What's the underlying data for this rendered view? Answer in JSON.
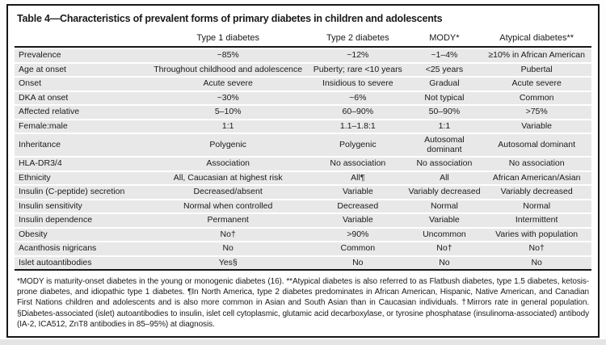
{
  "title": "Table 4—Characteristics of prevalent forms of primary diabetes in children and adolescents",
  "table": {
    "columns": [
      "",
      "Type 1 diabetes",
      "Type 2 diabetes",
      "MODY*",
      "Atypical diabetes**"
    ],
    "rows": [
      {
        "label": "Prevalence",
        "values": [
          "~85%",
          "~12%",
          "~1–4%",
          "≥10% in African American"
        ]
      },
      {
        "label": "Age at onset",
        "values": [
          "Throughout childhood and adolescence",
          "Puberty; rare <10 years",
          "<25 years",
          "Pubertal"
        ]
      },
      {
        "label": "Onset",
        "values": [
          "Acute severe",
          "Insidious to severe",
          "Gradual",
          "Acute severe"
        ]
      },
      {
        "label": "DKA at onset",
        "values": [
          "~30%",
          "~6%",
          "Not typical",
          "Common"
        ]
      },
      {
        "label": "Affected relative",
        "values": [
          "5–10%",
          "60–90%",
          "50–90%",
          ">75%"
        ]
      },
      {
        "label": "Female:male",
        "values": [
          "1:1",
          "1.1–1.8:1",
          "1:1",
          "Variable"
        ]
      },
      {
        "label": "Inheritance",
        "values": [
          "Polygenic",
          "Polygenic",
          "Autosomal\ndominant",
          "Autosomal dominant"
        ]
      },
      {
        "label": "HLA-DR3/4",
        "values": [
          "Association",
          "No association",
          "No association",
          "No association"
        ]
      },
      {
        "label": "Ethnicity",
        "values": [
          "All, Caucasian at highest risk",
          "All¶",
          "All",
          "African American/Asian"
        ]
      },
      {
        "label": "Insulin (C-peptide) secretion",
        "values": [
          "Decreased/absent",
          "Variable",
          "Variably decreased",
          "Variably decreased"
        ]
      },
      {
        "label": "Insulin sensitivity",
        "values": [
          "Normal when controlled",
          "Decreased",
          "Normal",
          "Normal"
        ]
      },
      {
        "label": "Insulin dependence",
        "values": [
          "Permanent",
          "Variable",
          "Variable",
          "Intermittent"
        ]
      },
      {
        "label": "Obesity",
        "values": [
          "No†",
          ">90%",
          "Uncommon",
          "Varies with population"
        ]
      },
      {
        "label": "Acanthosis nigricans",
        "values": [
          "No",
          "Common",
          "No†",
          "No†"
        ]
      },
      {
        "label": "Islet autoantibodies",
        "values": [
          "Yes§",
          "No",
          "No",
          "No"
        ]
      }
    ]
  },
  "footnote": "*MODY is maturity-onset diabetes in the young or monogenic diabetes (16). **Atypical diabetes is also referred to as Flatbush diabetes, type 1.5 diabetes, ketosis-prone diabetes, and idiopathic type 1 diabetes. ¶In North America, type 2 diabetes predominates in African American, Hispanic, Native American, and Canadian First Nations children and adolescents and is also more common in Asian and South Asian than in Caucasian individuals. †Mirrors rate in general population. §Diabetes-associated (islet) autoantibodies to insulin, islet cell cytoplasmic, glutamic acid decarboxylase, or tyrosine phosphatase (insulinoma-associated) antibody (IA-2, ICA512, ZnT8 antibodies in 85–95%) at diagnosis.",
  "colors": {
    "row_stripe": "#e8e8e8",
    "border": "#161616",
    "text": "#1a1a1a",
    "bottom_band": "#e4e4e4"
  }
}
